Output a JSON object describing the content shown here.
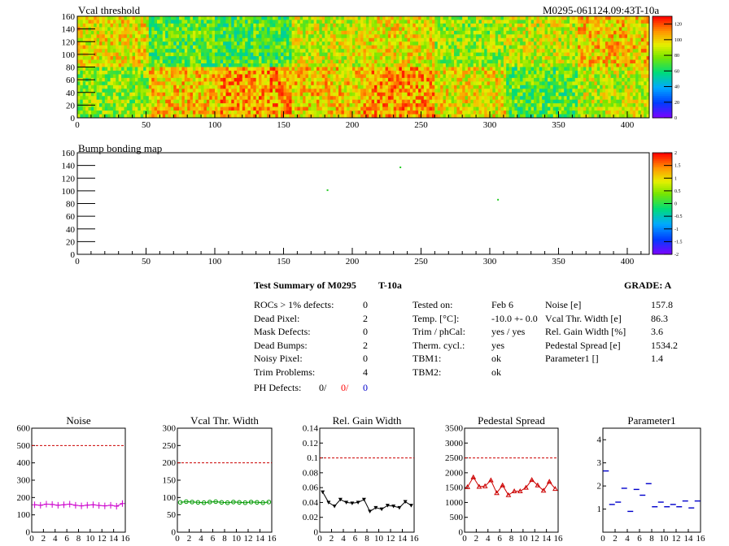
{
  "header": {
    "vcal_title": "Vcal threshold",
    "module_id": "M0295-061124.09:43T-10a",
    "bump_title": "Bump bonding map"
  },
  "maps": {
    "x_ticks": [
      "0",
      "50",
      "100",
      "150",
      "200",
      "250",
      "300",
      "350",
      "400"
    ],
    "y_ticks": [
      "0",
      "20",
      "40",
      "60",
      "80",
      "100",
      "120",
      "140",
      "160"
    ],
    "vcal_colorbar_ticks": [
      "0",
      "20",
      "40",
      "60",
      "80",
      "100",
      "120"
    ],
    "bump_colorbar_ticks": [
      "-2",
      "-1.5",
      "-1",
      "-0.5",
      "0",
      "0.5",
      "1",
      "1.5",
      "2"
    ]
  },
  "summary": {
    "title": "Test Summary of M0295",
    "temp_code": "T-10a",
    "grade_label": "GRADE:  A",
    "left_labels": [
      "ROCs > 1% defects:",
      "Dead Pixel:",
      "Mask Defects:",
      "Dead Bumps:",
      "Noisy Pixel:",
      "Trim Problems:"
    ],
    "left_values": [
      "0",
      "2",
      "0",
      "2",
      "0",
      "4"
    ],
    "ph_label": "PH Defects:",
    "ph_values": [
      "0/",
      "0/",
      "0"
    ],
    "ph_colors": [
      "#000000",
      "#ff0000",
      "#0000cc"
    ],
    "mid_labels": [
      "Tested on:",
      "Temp. [°C]:",
      "Trim / phCal:",
      "Therm. cycl.:",
      "TBM1:",
      "TBM2:"
    ],
    "mid_values": [
      "Feb 6",
      "-10.0 +- 0.0",
      "yes / yes",
      "yes",
      "ok",
      "ok"
    ],
    "right_labels": [
      "Noise [e]",
      "Vcal Thr. Width [e]",
      "Rel. Gain Width [%]",
      "Pedestal Spread [e]",
      "Parameter1 []"
    ],
    "right_values": [
      "157.8",
      "86.3",
      "3.6",
      "1534.2",
      "1.4"
    ]
  },
  "chart_data": [
    {
      "type": "heatmap",
      "title": "Vcal threshold",
      "xlim": [
        0,
        416
      ],
      "ylim": [
        0,
        160
      ],
      "zlim": [
        0,
        130
      ],
      "description_values": "8x2 ROC blocks of mean threshold",
      "roc_means_top_row": [
        95,
        72,
        70,
        90,
        95,
        82,
        88,
        100
      ],
      "roc_means_bottom_row": [
        80,
        100,
        108,
        100,
        108,
        95,
        72,
        88
      ]
    },
    {
      "type": "scatter",
      "title": "Bump bonding map",
      "xlim": [
        0,
        416
      ],
      "ylim": [
        0,
        160
      ],
      "zlim": [
        -2,
        2
      ],
      "points": [
        {
          "x": 235,
          "y": 137
        },
        {
          "x": 182,
          "y": 101
        },
        {
          "x": 306,
          "y": 86
        }
      ]
    },
    {
      "type": "line",
      "title": "Noise",
      "x": [
        0,
        1,
        2,
        3,
        4,
        5,
        6,
        7,
        8,
        9,
        10,
        11,
        12,
        13,
        14,
        15
      ],
      "values": [
        158,
        155,
        162,
        160,
        155,
        158,
        162,
        155,
        152,
        156,
        158,
        154,
        152,
        155,
        150,
        165
      ],
      "ylim": [
        0,
        600
      ],
      "threshold": 500,
      "xticks": [
        "0",
        "2",
        "4",
        "6",
        "8",
        "10",
        "12",
        "14",
        "16"
      ],
      "yticks": [
        "0",
        "100",
        "200",
        "300",
        "400",
        "500",
        "600"
      ],
      "color": "#cc00cc",
      "marker": "plus"
    },
    {
      "type": "line",
      "title": "Vcal Thr. Width",
      "x": [
        0,
        1,
        2,
        3,
        4,
        5,
        6,
        7,
        8,
        9,
        10,
        11,
        12,
        13,
        14,
        15
      ],
      "values": [
        86,
        88,
        87,
        86,
        85,
        87,
        88,
        86,
        85,
        87,
        86,
        85,
        87,
        86,
        85,
        87
      ],
      "ylim": [
        0,
        300
      ],
      "threshold": 200,
      "xticks": [
        "0",
        "2",
        "4",
        "6",
        "8",
        "10",
        "12",
        "14",
        "16"
      ],
      "yticks": [
        "0",
        "50",
        "100",
        "150",
        "200",
        "250",
        "300"
      ],
      "color": "#009900",
      "marker": "circle"
    },
    {
      "type": "line",
      "title": "Rel. Gain Width",
      "x": [
        0,
        1,
        2,
        3,
        4,
        5,
        6,
        7,
        8,
        9,
        10,
        11,
        12,
        13,
        14,
        15
      ],
      "values": [
        0.054,
        0.04,
        0.035,
        0.044,
        0.04,
        0.039,
        0.04,
        0.044,
        0.028,
        0.033,
        0.031,
        0.036,
        0.035,
        0.033,
        0.041,
        0.036
      ],
      "ylim": [
        0,
        0.14
      ],
      "threshold": 0.1,
      "xticks": [
        "0",
        "2",
        "4",
        "6",
        "8",
        "10",
        "12",
        "14",
        "16"
      ],
      "yticks": [
        "0",
        "0.02",
        "0.04",
        "0.06",
        "0.08",
        "0.1",
        "0.12",
        "0.14"
      ],
      "color": "#000000",
      "marker": "triangle-down"
    },
    {
      "type": "line",
      "title": "Pedestal Spread",
      "x": [
        0,
        1,
        2,
        3,
        4,
        5,
        6,
        7,
        8,
        9,
        10,
        11,
        12,
        13,
        14,
        15
      ],
      "values": [
        1520,
        1850,
        1530,
        1550,
        1750,
        1320,
        1580,
        1250,
        1380,
        1380,
        1500,
        1760,
        1580,
        1400,
        1700,
        1460
      ],
      "ylim": [
        0,
        3500
      ],
      "threshold": 2500,
      "xticks": [
        "0",
        "2",
        "4",
        "6",
        "8",
        "10",
        "12",
        "14",
        "16"
      ],
      "yticks": [
        "0",
        "500",
        "1000",
        "1500",
        "2000",
        "2500",
        "3000",
        "3500"
      ],
      "color": "#cc0000",
      "marker": "triangle-up"
    },
    {
      "type": "scatter",
      "title": "Parameter1",
      "x": [
        0,
        1,
        2,
        3,
        4,
        5,
        6,
        7,
        8,
        9,
        10,
        11,
        12,
        13,
        14,
        15
      ],
      "values": [
        2.65,
        1.2,
        1.3,
        1.9,
        0.9,
        1.85,
        1.6,
        2.1,
        1.1,
        1.3,
        1.1,
        1.2,
        1.1,
        1.35,
        1.05,
        1.35
      ],
      "ylim": [
        0,
        4.5
      ],
      "xticks": [
        "0",
        "2",
        "4",
        "6",
        "8",
        "10",
        "12",
        "14",
        "16"
      ],
      "yticks": [
        "1",
        "2",
        "3",
        "4"
      ],
      "color": "#0000cc",
      "marker": "hbar"
    }
  ]
}
